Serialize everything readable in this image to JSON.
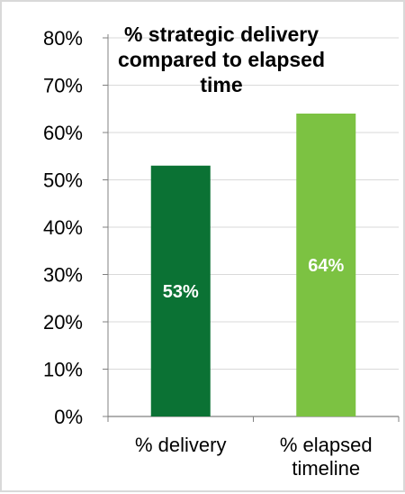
{
  "chart_data": {
    "type": "bar",
    "title": [
      "% strategic delivery",
      "compared to elapsed",
      "time"
    ],
    "categories": [
      [
        "% delivery"
      ],
      [
        "% elapsed",
        "timeline"
      ]
    ],
    "values": [
      53,
      64
    ],
    "data_labels": [
      "53%",
      "64%"
    ],
    "bar_colors": [
      "#0b7234",
      "#7cc242"
    ],
    "ylim": [
      0,
      80
    ],
    "yticks": [
      0,
      10,
      20,
      30,
      40,
      50,
      60,
      70,
      80
    ],
    "ytick_labels": [
      "0%",
      "10%",
      "20%",
      "30%",
      "40%",
      "50%",
      "60%",
      "70%",
      "80%"
    ],
    "xlabel": "",
    "ylabel": "",
    "grid": true,
    "legend": "none"
  }
}
